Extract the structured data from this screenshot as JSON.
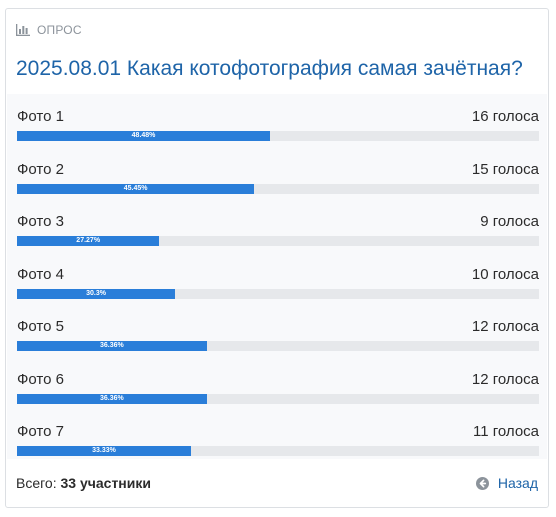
{
  "poll": {
    "tag": "ОПРОС",
    "title": "2025.08.01 Какая котофотография самая зачётная?",
    "options": [
      {
        "label": "Фото 1",
        "votes": "16 голоса",
        "percent_text": "48.48%",
        "percent": 48.48
      },
      {
        "label": "Фото 2",
        "votes": "15 голоса",
        "percent_text": "45.45%",
        "percent": 45.45
      },
      {
        "label": "Фото 3",
        "votes": "9 голоса",
        "percent_text": "27.27%",
        "percent": 27.27
      },
      {
        "label": "Фото 4",
        "votes": "10 голоса",
        "percent_text": "30.3%",
        "percent": 30.3
      },
      {
        "label": "Фото 5",
        "votes": "12 голоса",
        "percent_text": "36.36%",
        "percent": 36.36
      },
      {
        "label": "Фото 6",
        "votes": "12 голоса",
        "percent_text": "36.36%",
        "percent": 36.36
      },
      {
        "label": "Фото 7",
        "votes": "11 голоса",
        "percent_text": "33.33%",
        "percent": 33.33
      }
    ],
    "total_label": "Всего:",
    "total_value": "33 участники",
    "back_label": "Назад",
    "back_icon": "arrow-left-circle-icon",
    "tag_icon": "bar-chart-icon"
  },
  "colors": {
    "accent": "#1e64a8",
    "bar_fill": "#2a7ed9",
    "bar_track": "#e6e8eb",
    "options_bg": "#f8f9fb"
  }
}
